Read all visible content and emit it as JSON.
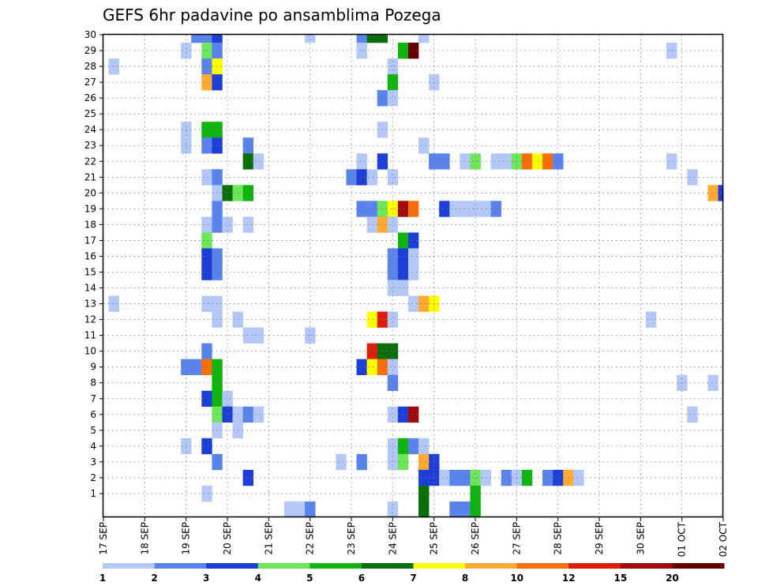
{
  "chart_data": {
    "type": "heatmap",
    "title": "GEFS 6hr padavine po ansamblima Pozega",
    "xlabel": "",
    "ylabel": "",
    "x_tick_labels": [
      "17 SEP",
      "18 SEP",
      "19 SEP",
      "20 SEP",
      "21 SEP",
      "22 SEP",
      "23 SEP",
      "24 SEP",
      "25 SEP",
      "26 SEP",
      "27 SEP",
      "28 SEP",
      "29 SEP",
      "30 SEP",
      "01 OCT",
      "02 OCT"
    ],
    "y_tick_labels": [
      "1",
      "2",
      "3",
      "4",
      "5",
      "6",
      "7",
      "8",
      "9",
      "10",
      "11",
      "12",
      "13",
      "14",
      "15",
      "16",
      "17",
      "18",
      "19",
      "20",
      "21",
      "22",
      "23",
      "24",
      "25",
      "26",
      "27",
      "28",
      "29",
      "30"
    ],
    "x_range_steps": [
      0,
      60
    ],
    "y_range": [
      0,
      30
    ],
    "step_hours": 6,
    "grid": true,
    "colorbar": {
      "position": "bottom",
      "levels": [
        "1",
        "2",
        "3",
        "4",
        "5",
        "6",
        "7",
        "8",
        "10",
        "12",
        "15",
        "20"
      ],
      "colors": [
        "#b4c8f8",
        "#5a84ec",
        "#1e3ed8",
        "#6ee65a",
        "#0fb40f",
        "#0a6e0a",
        "#ffff00",
        "#ffaa32",
        "#fa6e0a",
        "#dc1e0a",
        "#a00a0a",
        "#640000"
      ]
    },
    "cells": [
      [
        30,
        9,
        2
      ],
      [
        30,
        10,
        2
      ],
      [
        30,
        11,
        3
      ],
      [
        30,
        20,
        1
      ],
      [
        30,
        25,
        2
      ],
      [
        30,
        26,
        6
      ],
      [
        30,
        27,
        6
      ],
      [
        30,
        31,
        1
      ],
      [
        29,
        8,
        1
      ],
      [
        29,
        10,
        4
      ],
      [
        29,
        11,
        2
      ],
      [
        29,
        25,
        1
      ],
      [
        29,
        29,
        5
      ],
      [
        29,
        30,
        12
      ],
      [
        29,
        55,
        1
      ],
      [
        28,
        1,
        1
      ],
      [
        28,
        10,
        2
      ],
      [
        28,
        11,
        7
      ],
      [
        28,
        28,
        1
      ],
      [
        27,
        10,
        8
      ],
      [
        27,
        11,
        3
      ],
      [
        27,
        28,
        5
      ],
      [
        27,
        32,
        1
      ],
      [
        26,
        27,
        2
      ],
      [
        26,
        28,
        1
      ],
      [
        24,
        8,
        1
      ],
      [
        24,
        10,
        5
      ],
      [
        24,
        11,
        5
      ],
      [
        24,
        27,
        1
      ],
      [
        23,
        8,
        1
      ],
      [
        23,
        10,
        2
      ],
      [
        23,
        11,
        3
      ],
      [
        23,
        14,
        2
      ],
      [
        23,
        31,
        1
      ],
      [
        22,
        14,
        6
      ],
      [
        22,
        15,
        1
      ],
      [
        22,
        25,
        1
      ],
      [
        22,
        27,
        3
      ],
      [
        22,
        32,
        2
      ],
      [
        22,
        33,
        2
      ],
      [
        22,
        35,
        1
      ],
      [
        22,
        36,
        4
      ],
      [
        22,
        38,
        1
      ],
      [
        22,
        39,
        1
      ],
      [
        22,
        40,
        4
      ],
      [
        22,
        41,
        9
      ],
      [
        22,
        42,
        7
      ],
      [
        22,
        43,
        9
      ],
      [
        22,
        44,
        2
      ],
      [
        22,
        55,
        1
      ],
      [
        21,
        10,
        1
      ],
      [
        21,
        11,
        2
      ],
      [
        21,
        24,
        2
      ],
      [
        21,
        25,
        3
      ],
      [
        21,
        26,
        1
      ],
      [
        21,
        28,
        1
      ],
      [
        21,
        57,
        1
      ],
      [
        20,
        11,
        1
      ],
      [
        20,
        12,
        6
      ],
      [
        20,
        13,
        4
      ],
      [
        20,
        14,
        5
      ],
      [
        20,
        59,
        8
      ],
      [
        20,
        60,
        3
      ],
      [
        19,
        11,
        2
      ],
      [
        19,
        25,
        2
      ],
      [
        19,
        26,
        2
      ],
      [
        19,
        27,
        4
      ],
      [
        19,
        28,
        7
      ],
      [
        19,
        29,
        11
      ],
      [
        19,
        30,
        9
      ],
      [
        19,
        33,
        3
      ],
      [
        19,
        34,
        1
      ],
      [
        19,
        35,
        1
      ],
      [
        19,
        36,
        1
      ],
      [
        19,
        37,
        1
      ],
      [
        19,
        38,
        2
      ],
      [
        18,
        10,
        1
      ],
      [
        18,
        11,
        2
      ],
      [
        18,
        12,
        1
      ],
      [
        18,
        14,
        1
      ],
      [
        18,
        26,
        1
      ],
      [
        18,
        27,
        8
      ],
      [
        18,
        28,
        1
      ],
      [
        17,
        10,
        4
      ],
      [
        17,
        29,
        5
      ],
      [
        17,
        30,
        3
      ],
      [
        16,
        10,
        3
      ],
      [
        16,
        11,
        2
      ],
      [
        16,
        28,
        2
      ],
      [
        16,
        29,
        3
      ],
      [
        16,
        30,
        1
      ],
      [
        15,
        10,
        3
      ],
      [
        15,
        11,
        2
      ],
      [
        15,
        28,
        2
      ],
      [
        15,
        29,
        3
      ],
      [
        15,
        30,
        1
      ],
      [
        14,
        28,
        1
      ],
      [
        14,
        29,
        1
      ],
      [
        13,
        1,
        1
      ],
      [
        13,
        10,
        1
      ],
      [
        13,
        11,
        1
      ],
      [
        13,
        30,
        1
      ],
      [
        13,
        31,
        8
      ],
      [
        13,
        32,
        7
      ],
      [
        12,
        11,
        1
      ],
      [
        12,
        13,
        1
      ],
      [
        12,
        26,
        7
      ],
      [
        12,
        27,
        10
      ],
      [
        12,
        28,
        1
      ],
      [
        12,
        53,
        1
      ],
      [
        11,
        14,
        1
      ],
      [
        11,
        15,
        1
      ],
      [
        11,
        20,
        1
      ],
      [
        10,
        10,
        2
      ],
      [
        10,
        26,
        10
      ],
      [
        10,
        27,
        6
      ],
      [
        10,
        28,
        6
      ],
      [
        9,
        8,
        2
      ],
      [
        9,
        9,
        2
      ],
      [
        9,
        10,
        9
      ],
      [
        9,
        11,
        5
      ],
      [
        9,
        25,
        3
      ],
      [
        9,
        26,
        7
      ],
      [
        9,
        27,
        9
      ],
      [
        9,
        28,
        1
      ],
      [
        8,
        11,
        5
      ],
      [
        8,
        28,
        2
      ],
      [
        8,
        56,
        1
      ],
      [
        8,
        59,
        1
      ],
      [
        7,
        10,
        3
      ],
      [
        7,
        11,
        5
      ],
      [
        7,
        12,
        1
      ],
      [
        6,
        11,
        4
      ],
      [
        6,
        12,
        3
      ],
      [
        6,
        13,
        1
      ],
      [
        6,
        14,
        2
      ],
      [
        6,
        15,
        1
      ],
      [
        6,
        28,
        1
      ],
      [
        6,
        29,
        3
      ],
      [
        6,
        30,
        11
      ],
      [
        6,
        57,
        1
      ],
      [
        5,
        11,
        1
      ],
      [
        5,
        13,
        1
      ],
      [
        4,
        8,
        1
      ],
      [
        4,
        10,
        3
      ],
      [
        4,
        28,
        1
      ],
      [
        4,
        29,
        5
      ],
      [
        4,
        30,
        2
      ],
      [
        4,
        31,
        1
      ],
      [
        3,
        11,
        2
      ],
      [
        3,
        23,
        1
      ],
      [
        3,
        25,
        2
      ],
      [
        3,
        28,
        1
      ],
      [
        3,
        29,
        4
      ],
      [
        3,
        31,
        8
      ],
      [
        3,
        32,
        3
      ],
      [
        2,
        14,
        3
      ],
      [
        2,
        31,
        3
      ],
      [
        2,
        32,
        3
      ],
      [
        2,
        33,
        1
      ],
      [
        2,
        34,
        2
      ],
      [
        2,
        35,
        2
      ],
      [
        2,
        36,
        4
      ],
      [
        2,
        37,
        1
      ],
      [
        2,
        39,
        2
      ],
      [
        2,
        40,
        1
      ],
      [
        2,
        41,
        5
      ],
      [
        2,
        43,
        2
      ],
      [
        2,
        44,
        3
      ],
      [
        2,
        45,
        8
      ],
      [
        2,
        46,
        1
      ],
      [
        1,
        10,
        1
      ],
      [
        1,
        31,
        6
      ],
      [
        1,
        36,
        5
      ],
      [
        0,
        18,
        1
      ],
      [
        0,
        19,
        1
      ],
      [
        0,
        20,
        2
      ],
      [
        0,
        28,
        1
      ],
      [
        0,
        31,
        6
      ],
      [
        0,
        34,
        2
      ],
      [
        0,
        35,
        2
      ],
      [
        0,
        36,
        5
      ]
    ]
  }
}
